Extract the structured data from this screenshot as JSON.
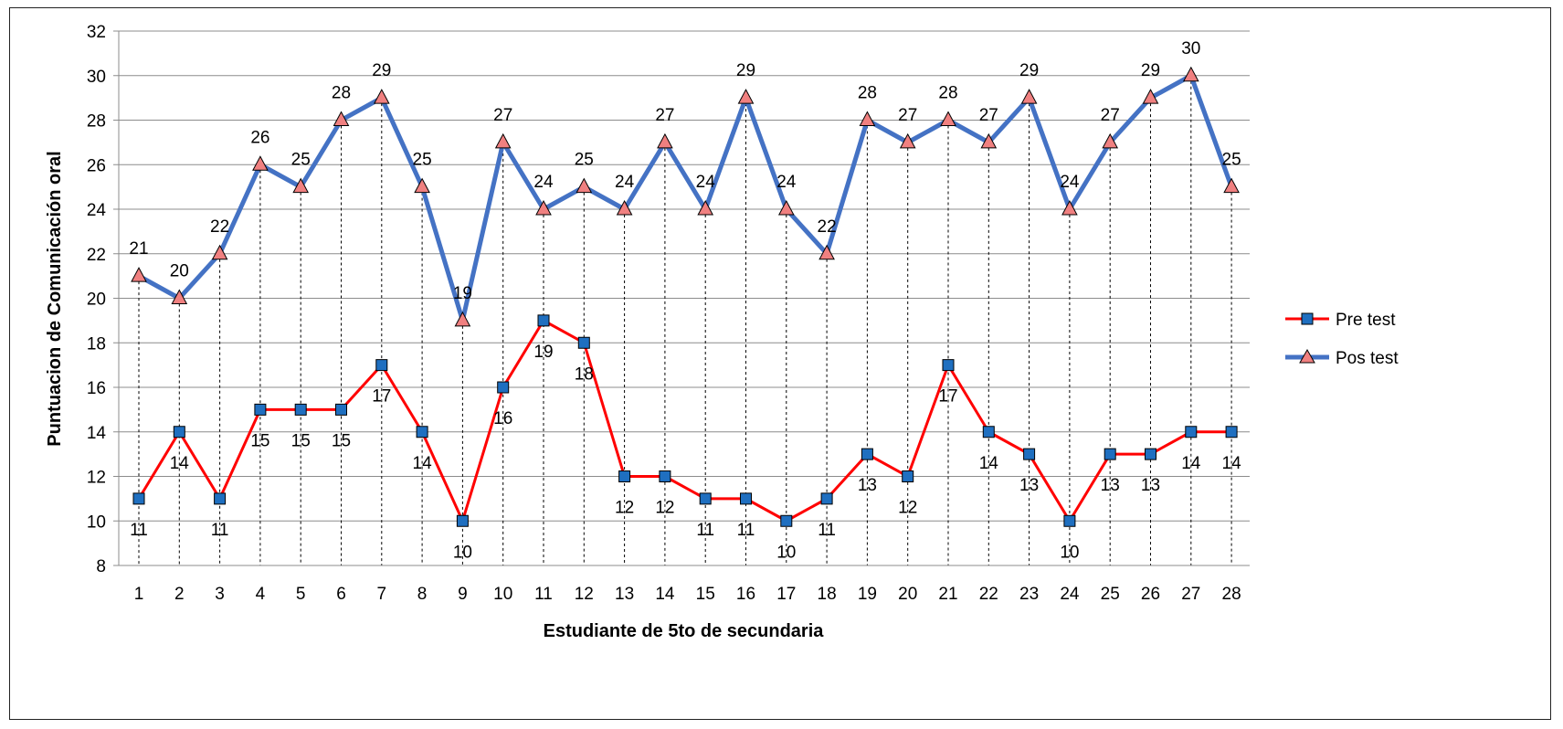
{
  "chart_data": {
    "type": "line",
    "title": "",
    "xlabel": "Estudiante de 5to  de secundaria",
    "ylabel": "Puntuacion de Comunicación oral",
    "ylim": [
      8,
      32
    ],
    "yticks": [
      "8",
      "10",
      "12",
      "14",
      "16",
      "18",
      "20",
      "22",
      "24",
      "26",
      "28",
      "30",
      "32"
    ],
    "categories": [
      "1",
      "2",
      "3",
      "4",
      "5",
      "6",
      "7",
      "8",
      "9",
      "10",
      "11",
      "12",
      "13",
      "14",
      "15",
      "16",
      "17",
      "18",
      "19",
      "20",
      "21",
      "22",
      "23",
      "24",
      "25",
      "26",
      "27",
      "28"
    ],
    "grid": "horizontal",
    "drop_lines": true,
    "legend_position": "right",
    "series": [
      {
        "name": "Pre test",
        "color": "#ff0000",
        "marker": "square",
        "marker_color": "#1f6fc0",
        "values": [
          11,
          14,
          11,
          15,
          15,
          15,
          17,
          14,
          10,
          16,
          19,
          18,
          12,
          12,
          11,
          11,
          10,
          11,
          13,
          12,
          17,
          14,
          13,
          10,
          13,
          13,
          14,
          14
        ]
      },
      {
        "name": "Pos test",
        "color": "#4472c4",
        "marker": "triangle",
        "marker_color": "#f08080",
        "values": [
          21,
          20,
          22,
          26,
          25,
          28,
          29,
          25,
          19,
          27,
          24,
          25,
          24,
          27,
          24,
          29,
          24,
          22,
          28,
          27,
          28,
          27,
          29,
          24,
          27,
          29,
          30,
          25
        ]
      }
    ]
  }
}
